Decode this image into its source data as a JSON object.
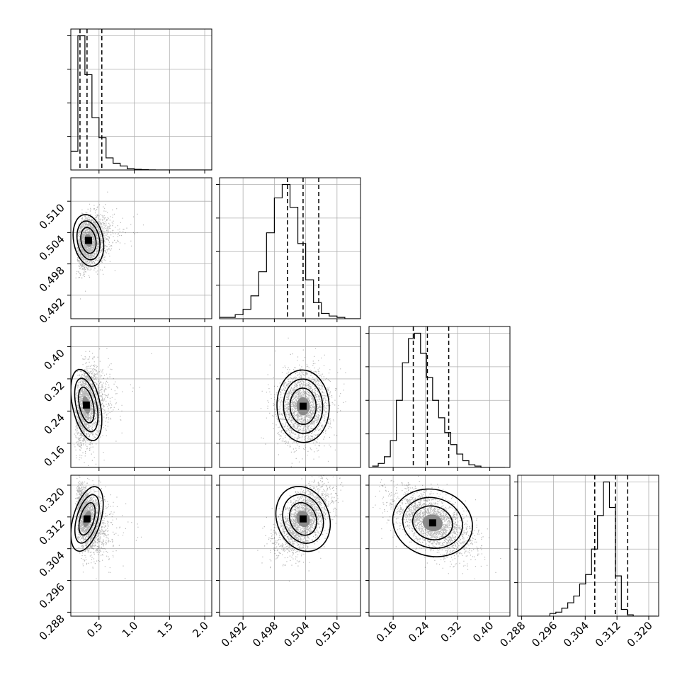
{
  "chart_data": {
    "type": "corner",
    "parameters": [
      {
        "id": "p0",
        "range": [
          0.1,
          2.1
        ],
        "ticks": [
          0.5,
          1.0,
          1.5,
          2.0
        ],
        "tick_labels": [
          "0.5",
          "1.0",
          "1.5",
          "2.0"
        ]
      },
      {
        "id": "p1",
        "range": [
          0.4875,
          0.5145
        ],
        "ticks": [
          0.492,
          0.498,
          0.504,
          0.51
        ],
        "tick_labels": [
          "0.492",
          "0.498",
          "0.504",
          "0.510"
        ]
      },
      {
        "id": "p2",
        "range": [
          0.1,
          0.45
        ],
        "ticks": [
          0.16,
          0.24,
          0.32,
          0.4
        ],
        "tick_labels": [
          "0.16",
          "0.24",
          "0.32",
          "0.40"
        ]
      },
      {
        "id": "p3",
        "range": [
          0.287,
          0.3225
        ],
        "ticks": [
          0.288,
          0.296,
          0.304,
          0.312,
          0.32
        ],
        "tick_labels": [
          "0.288",
          "0.296",
          "0.304",
          "0.312",
          "0.320"
        ]
      }
    ],
    "histograms": [
      {
        "param": 0,
        "bin_start": 0.1,
        "bin_width": 0.1,
        "counts": [
          0.14,
          1.0,
          0.71,
          0.39,
          0.24,
          0.09,
          0.05,
          0.03,
          0.01,
          0.005,
          0.003,
          0.001,
          0,
          0,
          0,
          0,
          0,
          0,
          0,
          0
        ],
        "quantiles": [
          0.23,
          0.33,
          0.54
        ]
      },
      {
        "param": 1,
        "bin_start": 0.4875,
        "bin_width": 0.0015,
        "counts": [
          0.01,
          0.01,
          0.03,
          0.07,
          0.17,
          0.35,
          0.64,
          0.9,
          1.0,
          0.83,
          0.56,
          0.29,
          0.12,
          0.04,
          0.02,
          0.01,
          0,
          0
        ],
        "quantiles": [
          0.5005,
          0.5035,
          0.5065
        ]
      },
      {
        "param": 2,
        "bin_start": 0.108,
        "bin_width": 0.015,
        "counts": [
          0.01,
          0.03,
          0.08,
          0.2,
          0.5,
          0.78,
          0.96,
          1.0,
          0.85,
          0.67,
          0.5,
          0.37,
          0.26,
          0.17,
          0.1,
          0.05,
          0.02,
          0.01,
          0,
          0,
          0,
          0
        ],
        "quantiles": [
          0.21,
          0.245,
          0.298
        ]
      },
      {
        "param": 3,
        "bin_start": 0.2876,
        "bin_width": 0.0015,
        "counts": [
          0,
          0,
          0,
          0,
          0,
          0.02,
          0.03,
          0.06,
          0.1,
          0.15,
          0.24,
          0.31,
          0.5,
          0.75,
          1.0,
          0.81,
          0.3,
          0.05,
          0.01,
          0,
          0,
          0,
          0
        ],
        "quantiles": [
          0.3064,
          0.3116,
          0.3147
        ]
      }
    ],
    "pairs": [
      {
        "x": 0,
        "y": 1,
        "mean": [
          0.35,
          0.5025
        ],
        "sd": [
          0.15,
          0.0025
        ],
        "rho": 0.25,
        "skew_x": 1.6,
        "n": 2200
      },
      {
        "x": 0,
        "y": 2,
        "mean": [
          0.32,
          0.255
        ],
        "sd": [
          0.14,
          0.045
        ],
        "rho": 0.2,
        "skew_x": 1.6,
        "n": 2200
      },
      {
        "x": 0,
        "y": 3,
        "mean": [
          0.33,
          0.3115
        ],
        "sd": [
          0.14,
          0.0042
        ],
        "rho": -0.3,
        "skew_x": 1.6,
        "n": 2200
      },
      {
        "x": 1,
        "y": 2,
        "mean": [
          0.5035,
          0.252
        ],
        "sd": [
          0.0025,
          0.045
        ],
        "rho": 0.05,
        "skew_x": 0,
        "n": 2200
      },
      {
        "x": 1,
        "y": 3,
        "mean": [
          0.5035,
          0.3115
        ],
        "sd": [
          0.0025,
          0.0042
        ],
        "rho": 0.55,
        "skew_x": 0,
        "n": 2200
      },
      {
        "x": 2,
        "y": 3,
        "mean": [
          0.258,
          0.3105
        ],
        "sd": [
          0.05,
          0.0042
        ],
        "rho": -0.55,
        "skew_x": 0,
        "n": 2200
      }
    ],
    "grid": true,
    "quantile_lines": "dashed"
  }
}
